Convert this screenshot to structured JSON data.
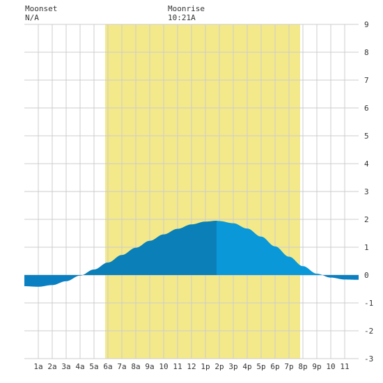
{
  "header": {
    "moonset_label": "Moonset",
    "moonset_value": "N/A",
    "moonrise_label": "Moonrise",
    "moonrise_value": "10:21A"
  },
  "colors": {
    "daylight": "#f3e98a",
    "grid": "#cccccc",
    "tide_negative": "#0a7fc2",
    "tide_rising_day": "#0a7fb8",
    "tide_falling_day": "#0b98d8",
    "tide_night": "#0b98d8",
    "axis_text": "#333333"
  },
  "chart_data": {
    "type": "area",
    "title": "",
    "xlabel": "",
    "ylabel": "",
    "xlim": [
      0,
      24
    ],
    "ylim": [
      -3,
      9
    ],
    "grid": true,
    "daylight": {
      "start": 5.8,
      "end": 19.8
    },
    "y_ticks": [
      9,
      8,
      7,
      6,
      5,
      4,
      3,
      2,
      1,
      0,
      -1,
      -2,
      -3
    ],
    "x_tick_labels": [
      "1a",
      "2a",
      "3a",
      "4a",
      "5a",
      "6a",
      "7a",
      "8a",
      "9a",
      "10",
      "11",
      "12",
      "1p",
      "2p",
      "3p",
      "4p",
      "5p",
      "6p",
      "7p",
      "8p",
      "9p",
      "10",
      "11"
    ],
    "series": [
      {
        "x": [
          0,
          1,
          2,
          3,
          4,
          5,
          6,
          7,
          8,
          9,
          10,
          11,
          12,
          13,
          13.8,
          14,
          15,
          16,
          17,
          18,
          19,
          20,
          21,
          22,
          23,
          24
        ],
        "y": [
          -0.4,
          -0.42,
          -0.36,
          -0.22,
          -0.02,
          0.2,
          0.45,
          0.72,
          0.98,
          1.23,
          1.46,
          1.66,
          1.82,
          1.92,
          1.95,
          1.94,
          1.86,
          1.67,
          1.38,
          1.03,
          0.66,
          0.32,
          0.05,
          -0.09,
          -0.16,
          -0.17
        ]
      }
    ]
  }
}
